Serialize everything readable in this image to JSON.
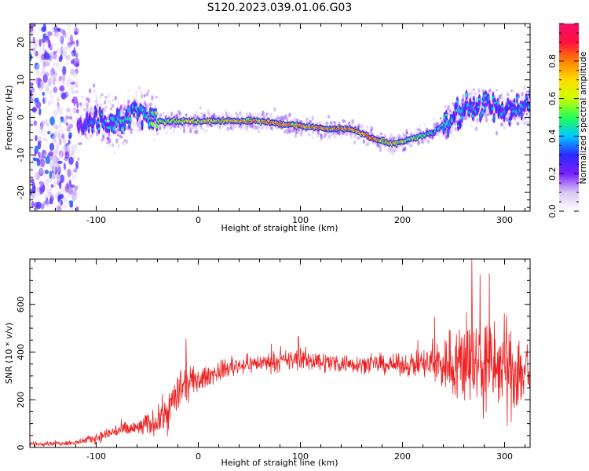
{
  "title": "S120.2023.039.01.06.G03",
  "colors": {
    "snr_line": "#ee2222",
    "colormap": [
      "#ffffff",
      "#d9c6f5",
      "#7a1fff",
      "#2a2aff",
      "#00c8ff",
      "#22ff55",
      "#ccff00",
      "#ffdd00",
      "#ff8000",
      "#ff1040",
      "#f0106a"
    ]
  },
  "chart_data": [
    {
      "type": "heatmap",
      "xlabel": "Height of straight line (km)",
      "ylabel": "Frequency (Hz)",
      "xlim": [
        -165,
        325
      ],
      "ylim": [
        -25,
        25
      ],
      "xticks": [
        -100,
        0,
        100,
        200,
        300
      ],
      "yticks": [
        -20,
        -10,
        0,
        10,
        20
      ],
      "colorbar": {
        "label": "Normalized spectral amplitude",
        "range": [
          0.0,
          1.0
        ],
        "ticks": [
          "0.0",
          "0.2",
          "0.4",
          "0.6",
          "0.8"
        ],
        "tick_values": [
          0.0,
          0.2,
          0.4,
          0.6,
          0.8
        ]
      },
      "ridge": {
        "height_km": [
          -165,
          -120,
          -100,
          -80,
          -60,
          -50,
          -40,
          0,
          60,
          90,
          120,
          150,
          175,
          190,
          205,
          230,
          250,
          265,
          280,
          300,
          325
        ],
        "frequency_hz": [
          0,
          -3,
          0,
          -2,
          2,
          1,
          -1,
          -1,
          -1,
          -2,
          -3,
          -3,
          -6,
          -7,
          -6,
          -4,
          0,
          3,
          3,
          2,
          3
        ],
        "peak_amplitude": [
          0.2,
          0.3,
          0.45,
          0.5,
          0.5,
          0.55,
          0.75,
          0.8,
          0.95,
          0.95,
          0.95,
          0.95,
          0.95,
          0.9,
          0.7,
          0.55,
          0.5,
          0.45,
          0.45,
          0.45,
          0.45
        ]
      },
      "noise_region_km": [
        -165,
        -118
      ]
    },
    {
      "type": "line",
      "xlabel": "Height of straight line (km)",
      "ylabel": "SNR (10 * v/v)",
      "xlim": [
        -165,
        325
      ],
      "ylim": [
        0,
        790
      ],
      "xticks": [
        -100,
        0,
        100,
        200,
        300
      ],
      "yticks": [
        0,
        200,
        400,
        600
      ],
      "series": [
        {
          "trend_height_km": [
            -165,
            -120,
            -100,
            -80,
            -60,
            -40,
            -30,
            -20,
            -10,
            0,
            20,
            40,
            60,
            80,
            100,
            130,
            160,
            200,
            220,
            240,
            260,
            280,
            300,
            325
          ],
          "trend_snr": [
            15,
            20,
            40,
            70,
            80,
            110,
            150,
            230,
            270,
            280,
            320,
            345,
            355,
            360,
            370,
            355,
            350,
            345,
            350,
            350,
            360,
            340,
            330,
            320
          ],
          "noise_amplitude": [
            8,
            10,
            20,
            30,
            35,
            55,
            80,
            90,
            70,
            45,
            40,
            35,
            35,
            40,
            45,
            40,
            35,
            40,
            60,
            120,
            180,
            200,
            190,
            170
          ],
          "peaks": [
            {
              "height_km": -12,
              "snr": 455
            },
            {
              "height_km": 98,
              "snr": 465
            },
            {
              "height_km": 268,
              "snr": 790
            },
            {
              "height_km": 285,
              "snr": 730
            },
            {
              "height_km": 276,
              "snr": 725
            }
          ]
        }
      ]
    }
  ]
}
